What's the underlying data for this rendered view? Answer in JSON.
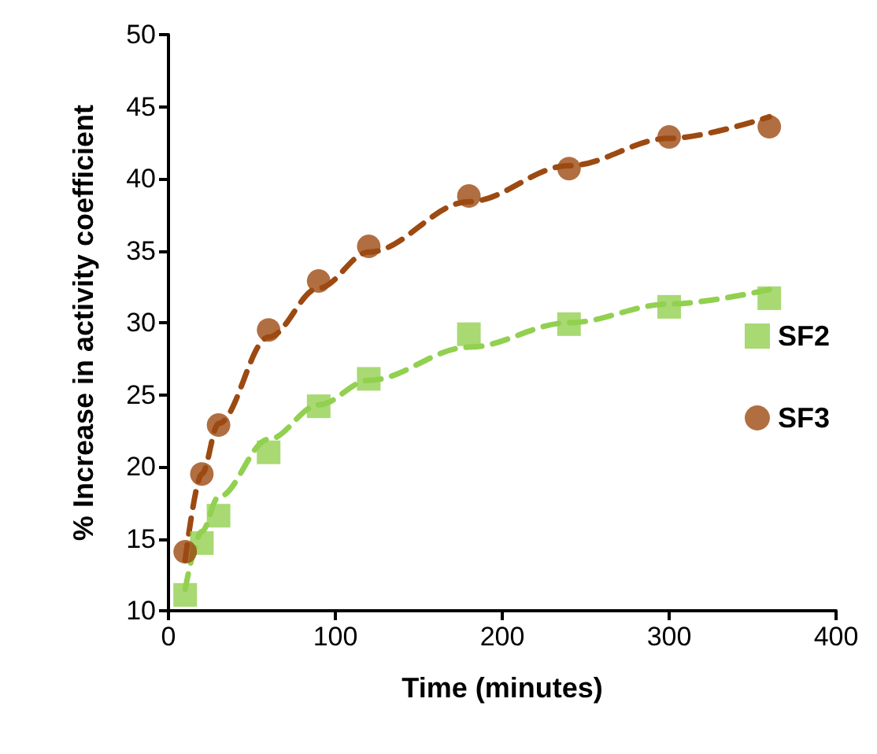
{
  "chart_data": {
    "type": "scatter",
    "xlabel": "Time (minutes)",
    "ylabel": "% Increase in activity coefficient",
    "xlim": [
      0,
      400
    ],
    "xticks": [
      0,
      100,
      200,
      300,
      400
    ],
    "ylim": [
      10,
      50
    ],
    "yticks": [
      10,
      15,
      20,
      25,
      30,
      35,
      40,
      45,
      50
    ],
    "grid": false,
    "legend": "right",
    "series": [
      {
        "type": "line",
        "color": "#92d050",
        "line_style": "dashed",
        "marker": "none",
        "x": [
          10,
          20,
          30,
          60,
          90,
          120,
          180,
          240,
          300,
          360
        ],
        "values": [
          11.5,
          15.5,
          17.9,
          21.9,
          24.3,
          26,
          28.3,
          30,
          31.3,
          32.3
        ]
      },
      {
        "type": "line",
        "color": "#9c4a12",
        "line_style": "dashed",
        "marker": "none",
        "x": [
          10,
          20,
          30,
          60,
          90,
          120,
          180,
          240,
          300,
          360
        ],
        "values": [
          13.5,
          19.5,
          23,
          29,
          32.4,
          34.9,
          38.4,
          40.9,
          42.8,
          44.3
        ]
      },
      {
        "name": "SF2",
        "color": "#92d050",
        "marker": "square",
        "x": [
          10,
          20,
          30,
          60,
          90,
          120,
          180,
          240,
          300,
          360
        ],
        "values": [
          11.1,
          14.7,
          16.6,
          21,
          24.2,
          26.1,
          29.2,
          29.9,
          31.1,
          31.7
        ]
      },
      {
        "name": "SF3",
        "color": "#9c4a12",
        "marker": "circle",
        "x": [
          10,
          20,
          30,
          60,
          90,
          120,
          180,
          240,
          300,
          360
        ],
        "values": [
          14.1,
          19.5,
          22.9,
          29.5,
          32.9,
          35.3,
          38.8,
          40.7,
          42.9,
          43.6
        ]
      }
    ]
  }
}
